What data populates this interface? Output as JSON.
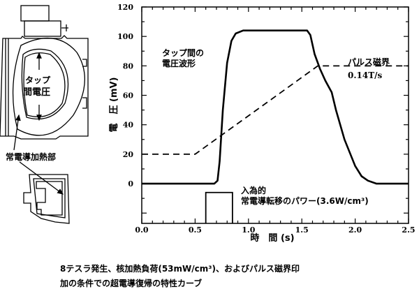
{
  "chart_data": {
    "type": "line",
    "title": "",
    "xlabel": "時　間 (s)",
    "ylabel": "電　圧 (mV)",
    "xlim": [
      0,
      2.5
    ],
    "ylim": [
      -27,
      120
    ],
    "xticks": [
      "0.0",
      "0.5",
      "1.0",
      "1.5",
      "2.0",
      "2.5"
    ],
    "xtick_values": [
      0,
      0.5,
      1.0,
      1.5,
      2.0,
      2.5
    ],
    "yticks": [
      "0",
      "20",
      "40",
      "60",
      "80",
      "100",
      "120"
    ],
    "ytick_values": [
      0,
      20,
      40,
      60,
      80,
      100,
      120
    ],
    "series": [
      {
        "name": "タップ間の電圧波形",
        "style": "solid",
        "x": [
          0,
          0.68,
          0.71,
          0.73,
          0.76,
          0.8,
          0.84,
          0.88,
          0.95,
          1.55,
          1.58,
          1.62,
          1.67,
          1.72,
          1.78,
          1.82,
          1.9,
          2.0,
          2.06,
          2.12,
          2.2,
          2.5
        ],
        "y": [
          0,
          0,
          2,
          15,
          50,
          82,
          97,
          102,
          104,
          104,
          101,
          88,
          78,
          70,
          62,
          50,
          30,
          12,
          5,
          2,
          0,
          0
        ]
      },
      {
        "name": "パルス磁界 0.14T/s",
        "style": "dashed",
        "x": [
          0,
          0.5,
          1.65,
          2.5
        ],
        "y": [
          20,
          20,
          80,
          80
        ]
      }
    ],
    "power_pulse": {
      "name": "入為的 常電導転移のパワー(3.6W/cm³)",
      "x": [
        0.6,
        0.85
      ]
    },
    "annotations": {
      "voltage_1": "タップ間の",
      "voltage_2": "電圧波形",
      "field_1": "パルス磁界",
      "field_2": "0.14T/s",
      "power_1": "入為的",
      "power_2": "常電導転移のパワー(3.6W/cm³)"
    }
  },
  "diagram": {
    "tap_label_1": "タップ",
    "tap_label_2": "間電圧",
    "heater_label": "常電導加熱部"
  },
  "caption": {
    "line1": "8テスラ発生、核加熱負荷(53mW/cm³)、およびパルス磁界印",
    "line2": "加の条件での超電導復帰の特性カーブ"
  }
}
